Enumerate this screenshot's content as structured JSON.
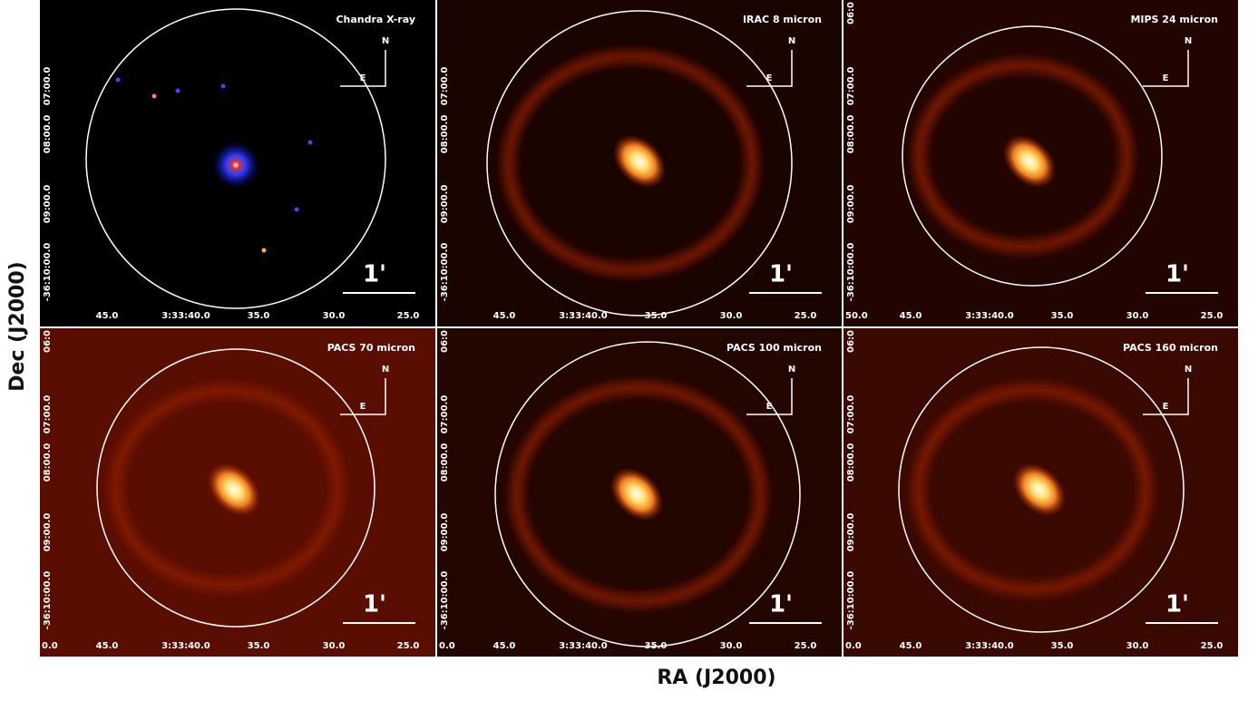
{
  "axis_labels": {
    "x": "RA (J2000)",
    "y": "Dec (J2000)"
  },
  "ra_ticks": [
    "45.0",
    "3:33:40.0",
    "35.0",
    "30.0",
    "25.0"
  ],
  "dec_ticks": [
    "07:00.0",
    "08:00.0",
    "09:00.0",
    "-36:10:00.0"
  ],
  "scale_label": "1'",
  "north": "N",
  "east": "E",
  "panels": [
    {
      "title": "Chandra X-ray",
      "colormap": "blue"
    },
    {
      "title": "IRAC 8 micron",
      "colormap": "heat",
      "ra_edge": "",
      "dec_edge": ""
    },
    {
      "title": "MIPS 24 micron",
      "colormap": "heat",
      "ra_edge": "50.0",
      "dec_edge": "06:0"
    },
    {
      "title": "PACS 70 micron",
      "colormap": "heat",
      "ra_edge": "0.0",
      "dec_edge": "06:0"
    },
    {
      "title": "PACS 100 micron",
      "colormap": "heat",
      "ra_edge": "0.0",
      "dec_edge": "06:0"
    },
    {
      "title": "PACS 160 micron",
      "colormap": "heat",
      "ra_edge": "0.0",
      "dec_edge": "06:0"
    }
  ]
}
